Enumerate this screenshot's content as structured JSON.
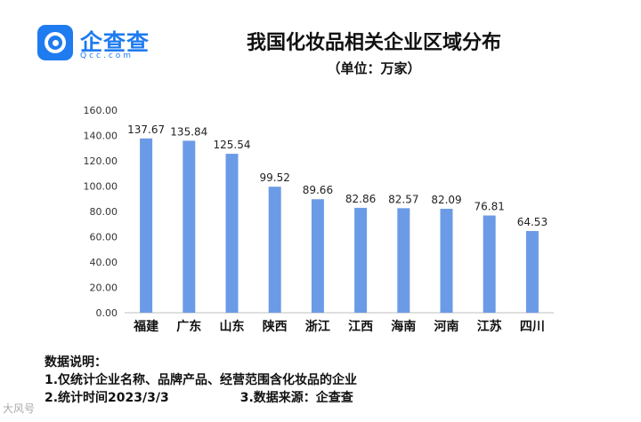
{
  "brand": {
    "name": "企查查",
    "url": "Qcc.com",
    "color": "#1f7bf0"
  },
  "chart_data": {
    "type": "bar",
    "title": "我国化妆品相关企业区域分布",
    "subtitle": "（单位：万家）",
    "xlabel": "",
    "ylabel": "",
    "categories": [
      "福建",
      "广东",
      "山东",
      "陕西",
      "浙江",
      "江西",
      "海南",
      "河南",
      "江苏",
      "四川"
    ],
    "values": [
      137.67,
      135.84,
      125.54,
      99.52,
      89.66,
      82.86,
      82.57,
      82.09,
      76.81,
      64.53
    ],
    "value_labels": [
      "137.67",
      "135.84",
      "125.54",
      "99.52",
      "89.66",
      "82.86",
      "82.57",
      "82.09",
      "76.81",
      "64.53"
    ],
    "ylim": [
      0,
      160
    ],
    "yticks": [
      "0.00",
      "20.00",
      "40.00",
      "60.00",
      "80.00",
      "100.00",
      "120.00",
      "140.00",
      "160.00"
    ],
    "grid": false,
    "legend": "none",
    "bar_color": "#6b9be6"
  },
  "notes": {
    "heading": "数据说明：",
    "line1": "1.仅统计企业名称、品牌产品、经营范围含化妆品的企业",
    "line2": "2.统计时间2023/3/3",
    "source": "3.数据来源：企查查"
  },
  "watermark": "大风号"
}
